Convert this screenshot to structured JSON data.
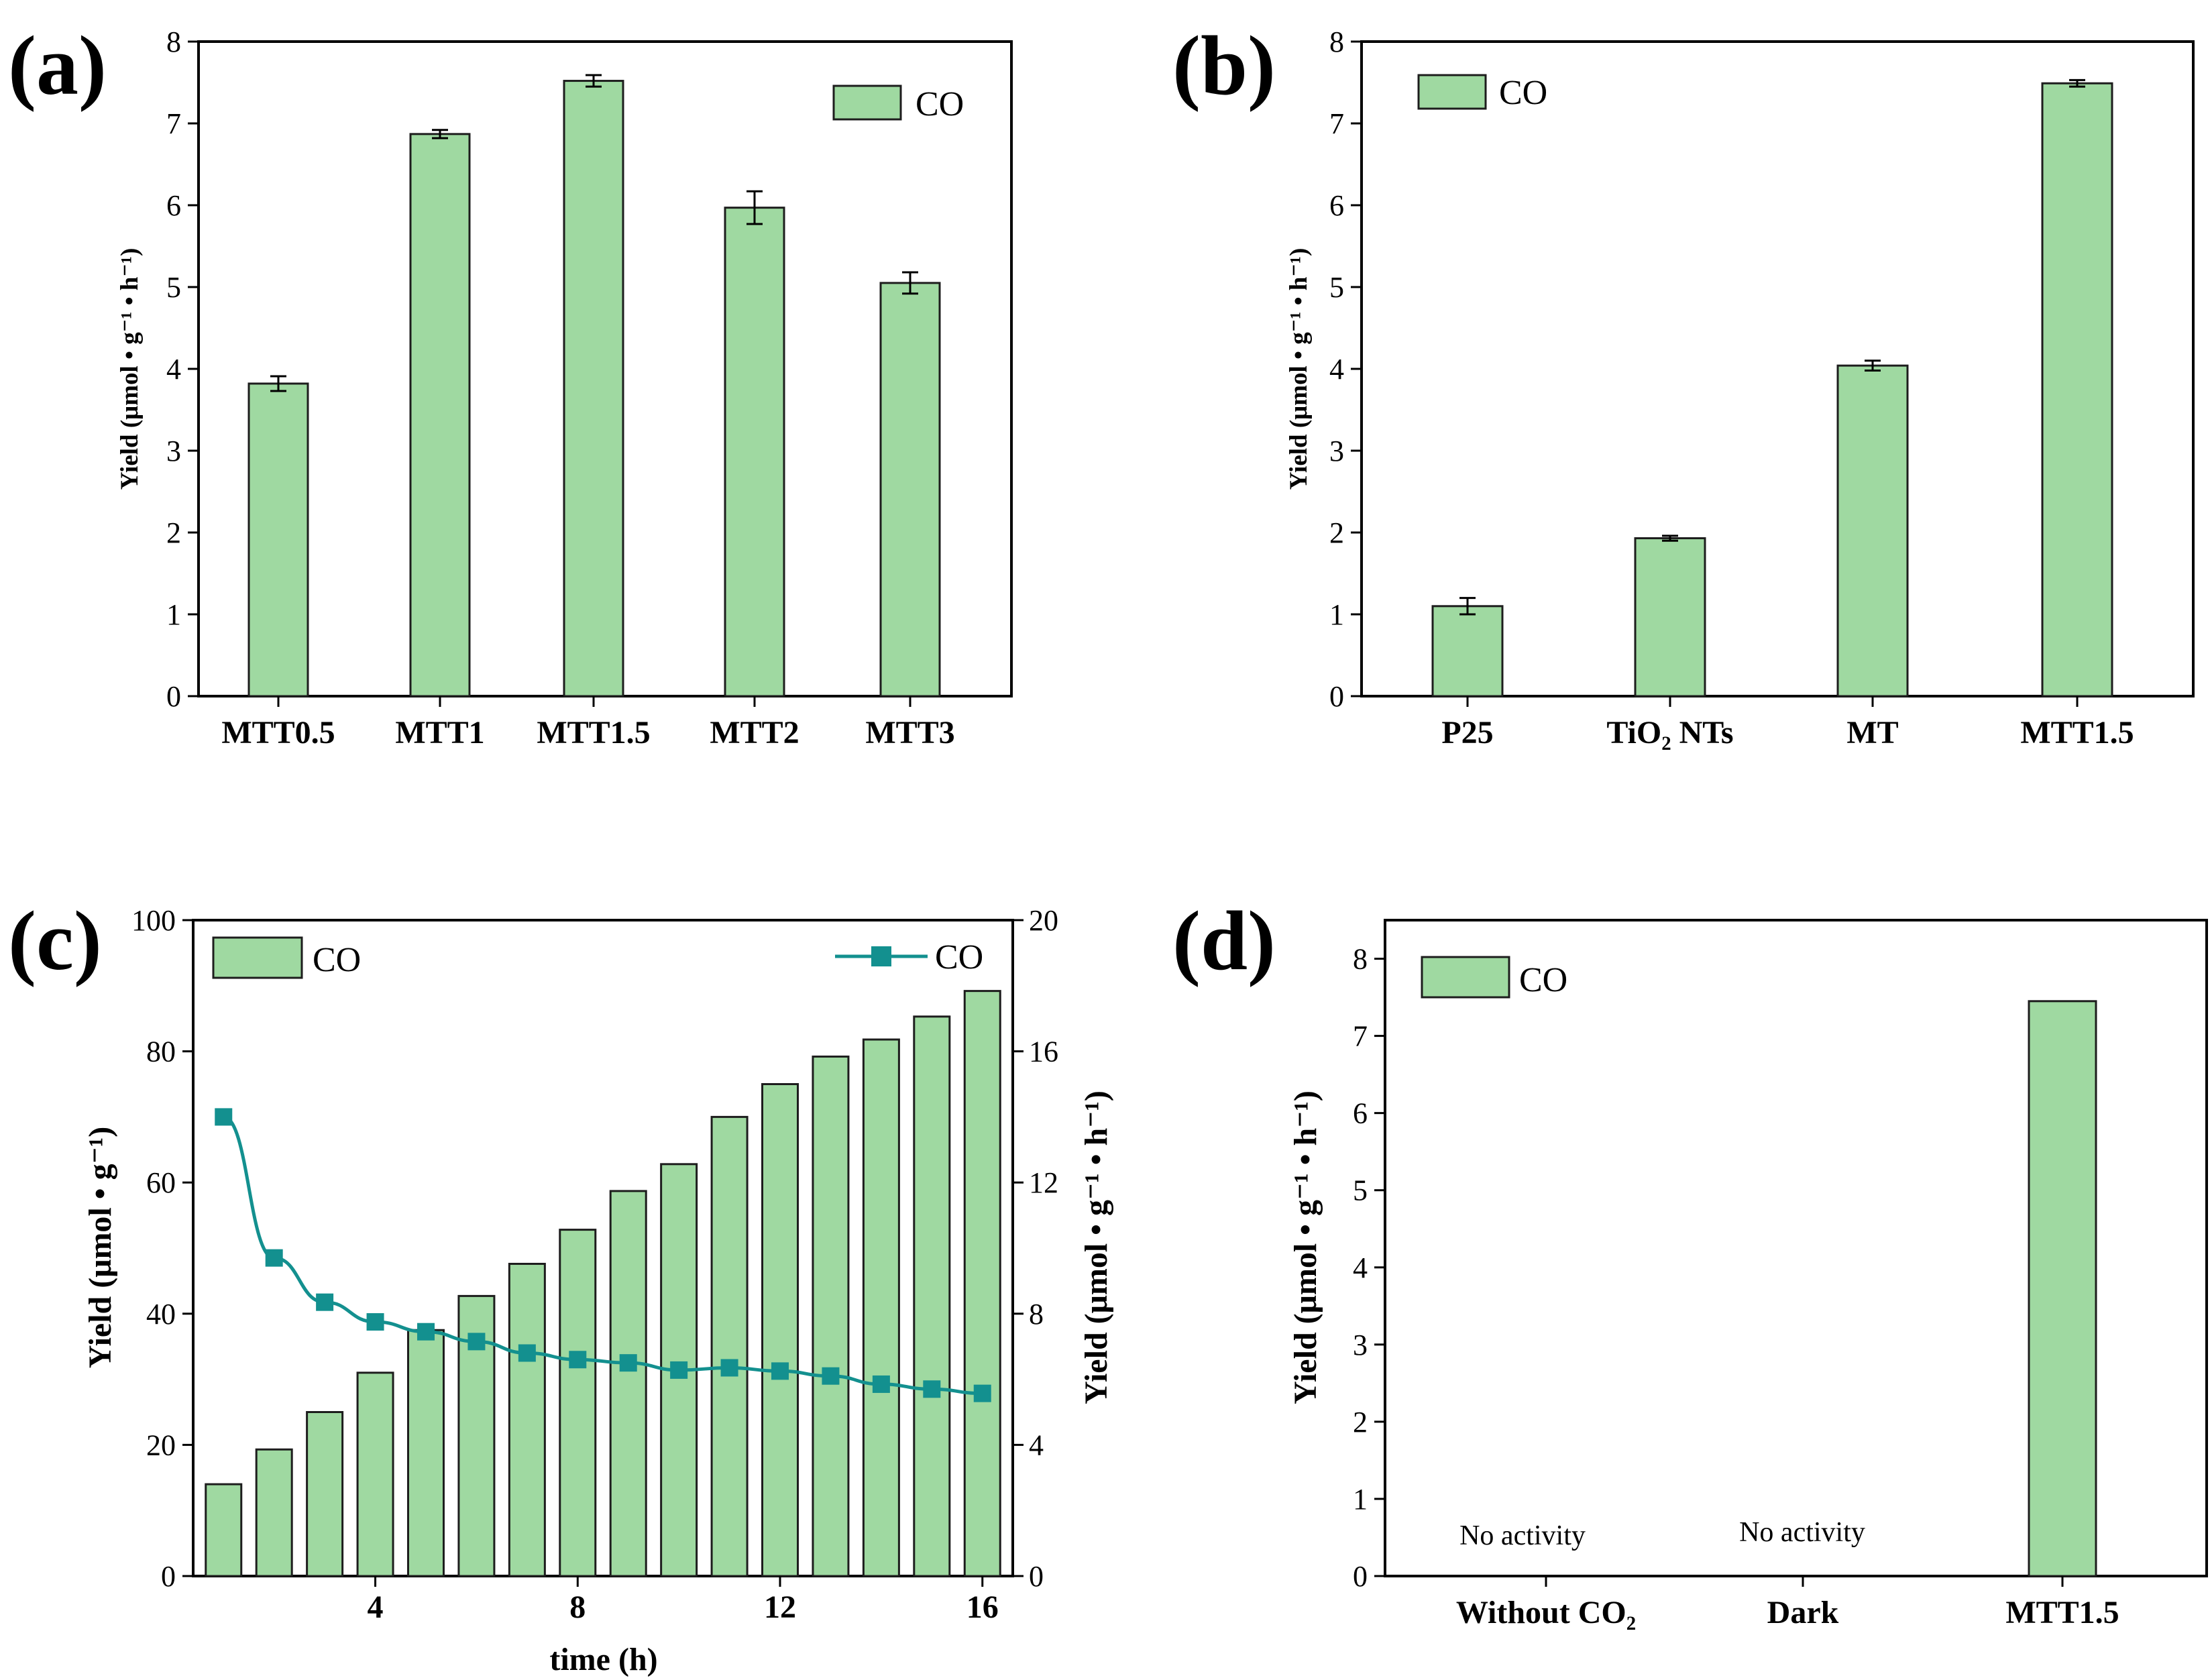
{
  "chart_data": [
    {
      "id": "a",
      "panel_label": "(a)",
      "type": "bar",
      "title": "",
      "ylabel": "Yield (μmol • g⁻¹ • h⁻¹)",
      "xlabel": "",
      "categories": [
        "MTT0.5",
        "MTT1",
        "MTT1.5",
        "MTT2",
        "MTT3"
      ],
      "series": [
        {
          "name": "CO",
          "values": [
            3.82,
            6.87,
            7.52,
            5.97,
            5.05
          ],
          "errors": [
            0.09,
            0.05,
            0.07,
            0.2,
            0.13
          ]
        }
      ],
      "ylim": [
        0,
        8
      ],
      "yticks": [
        "0",
        "1",
        "2",
        "3",
        "4",
        "5",
        "6",
        "7",
        "8"
      ],
      "legend": {
        "label": "CO",
        "position": "top-right"
      },
      "color": "#9fd9a1"
    },
    {
      "id": "b",
      "panel_label": "(b)",
      "type": "bar",
      "title": "",
      "ylabel": "Yield (μmol • g⁻¹ • h⁻¹)",
      "xlabel": "",
      "categories": [
        "P25",
        "TiO₂ NTs",
        "MT",
        "MTT1.5"
      ],
      "series": [
        {
          "name": "CO",
          "values": [
            1.1,
            1.93,
            4.04,
            7.49
          ],
          "errors": [
            0.1,
            0.03,
            0.06,
            0.04
          ]
        }
      ],
      "ylim": [
        0,
        8
      ],
      "yticks": [
        "0",
        "1",
        "2",
        "3",
        "4",
        "5",
        "6",
        "7",
        "8"
      ],
      "legend": {
        "label": "CO",
        "position": "top-left"
      },
      "color": "#9fd9a1"
    },
    {
      "id": "c",
      "panel_label": "(c)",
      "type": "bar+line",
      "title": "",
      "xlabel": "time (h)",
      "ylabel": "Yield (μmol • g⁻¹)",
      "ylabel_right": "Yield (μmol • g⁻¹ • h⁻¹)",
      "x": [
        1,
        2,
        3,
        4,
        5,
        6,
        7,
        8,
        9,
        10,
        11,
        12,
        13,
        14,
        15,
        16
      ],
      "xlim": [
        0.4,
        16.6
      ],
      "xticks": [
        "4",
        "8",
        "12",
        "16"
      ],
      "series": [
        {
          "name": "CO",
          "type": "bar",
          "axis": "left",
          "values": [
            14,
            19.3,
            25,
            31,
            37.5,
            42.7,
            47.6,
            52.8,
            58.7,
            62.8,
            70,
            75,
            79.2,
            81.8,
            85.3,
            89.2
          ]
        },
        {
          "name": "CO",
          "type": "line",
          "axis": "right",
          "values": [
            14.0,
            9.7,
            8.35,
            7.75,
            7.45,
            7.15,
            6.8,
            6.6,
            6.5,
            6.28,
            6.35,
            6.25,
            6.1,
            5.85,
            5.7,
            5.57
          ]
        }
      ],
      "ylim": [
        0,
        100
      ],
      "ylim_right": [
        0,
        20
      ],
      "yticks": [
        "0",
        "20",
        "40",
        "60",
        "80",
        "100"
      ],
      "yticks_right": [
        "0",
        "4",
        "8",
        "12",
        "16",
        "20"
      ],
      "legend": {
        "bar_label": "CO",
        "line_label": "CO",
        "bar_position": "top-left",
        "line_position": "top-right"
      },
      "color": "#9fd9a1",
      "line_color": "#13908f"
    },
    {
      "id": "d",
      "panel_label": "(d)",
      "type": "bar",
      "title": "",
      "ylabel": "Yield (μmol • g⁻¹ • h⁻¹)",
      "xlabel": "",
      "categories": [
        "Without CO₂",
        "Dark",
        "MTT1.5"
      ],
      "series": [
        {
          "name": "CO",
          "values": [
            0,
            0,
            7.45
          ]
        }
      ],
      "annotations": [
        "No activity",
        "No activity",
        ""
      ],
      "ylim": [
        0,
        8.5
      ],
      "yticks": [
        "0",
        "1",
        "2",
        "3",
        "4",
        "5",
        "6",
        "7",
        "8"
      ],
      "legend": {
        "label": "CO",
        "position": "top-left"
      },
      "color": "#9fd9a1"
    }
  ]
}
